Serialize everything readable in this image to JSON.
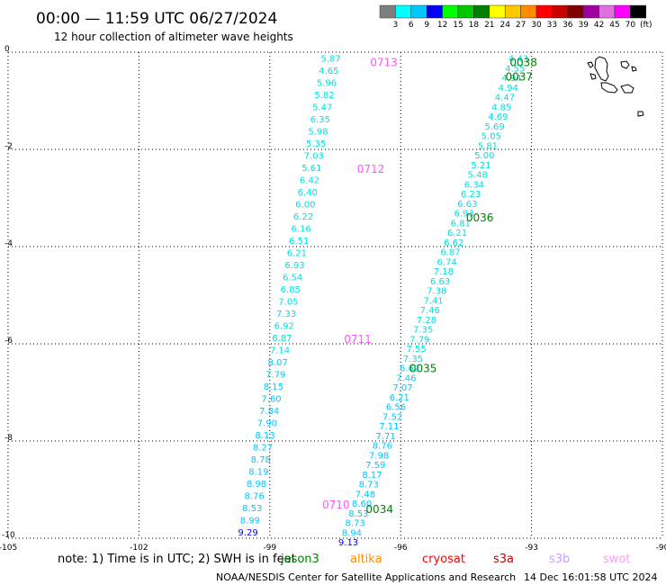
{
  "title": "00:00 — 11:59 UTC 06/27/2024",
  "subtitle": "12 hour collection of altimeter wave heights",
  "legend": {
    "unit": "(ft)",
    "labels": [
      "3",
      "6",
      "9",
      "12",
      "15",
      "18",
      "21",
      "24",
      "27",
      "30",
      "33",
      "36",
      "39",
      "42",
      "45",
      "70"
    ],
    "colors": [
      "#7f7f7f",
      "#00ffff",
      "#00c8ff",
      "#0000ff",
      "#00ff00",
      "#00c800",
      "#008000",
      "#ffff00",
      "#ffc800",
      "#ff8c00",
      "#ff0000",
      "#c80000",
      "#800000",
      "#a000a0",
      "#e070e0",
      "#ff00ff",
      "#000000"
    ]
  },
  "axes": {
    "x_ticks": [
      {
        "value": -105,
        "label": "-105"
      },
      {
        "value": -102,
        "label": "-102"
      },
      {
        "value": -99,
        "label": "-99"
      },
      {
        "value": -96,
        "label": "-96"
      },
      {
        "value": -93,
        "label": "-93"
      },
      {
        "value": -90,
        "label": "-90"
      }
    ],
    "y_ticks": [
      {
        "value": 0,
        "label": "0"
      },
      {
        "value": -2,
        "label": "-2"
      },
      {
        "value": -4,
        "label": "-4"
      },
      {
        "value": -6,
        "label": "-6"
      },
      {
        "value": -8,
        "label": "-8"
      },
      {
        "value": -10,
        "label": "-10"
      }
    ]
  },
  "tracks": [
    {
      "values": [
        "5.87",
        "4.65",
        "5.96",
        "5.82",
        "5.47",
        "6.35",
        "5.98",
        "5.35",
        "7.03",
        "5.61",
        "6.42",
        "6.40",
        "6.00",
        "6.22",
        "6.16",
        "6.51",
        "6.21",
        "6.93",
        "6.54",
        "6.85",
        "7.05",
        "7.33",
        "6.92",
        "6.87",
        "7.14",
        "8.07",
        "7.79",
        "8.15",
        "7.60",
        "7.84",
        "7.90",
        "8.13",
        "8.27",
        "8.78",
        "8.19",
        "8.98",
        "8.76",
        "8.53",
        "8.99",
        "9.29"
      ],
      "colors": [
        "#00e0e0",
        "#00e0e0",
        "#00e0e0",
        "#00e0e0",
        "#00e0e0",
        "#00e0e0",
        "#00e0e0",
        "#00e0e0",
        "#00e0e0",
        "#00e0e0",
        "#00e0e0",
        "#00e0e0",
        "#00e0e0",
        "#00e0e0",
        "#00e0e0",
        "#00e0e0",
        "#00e0e0",
        "#00e0e0",
        "#00e0e0",
        "#00e0e0",
        "#00e0e0",
        "#00e0e0",
        "#00e0e0",
        "#00e0e0",
        "#00e0e0",
        "#00c8ff",
        "#00c8ff",
        "#00c8ff",
        "#00c8ff",
        "#00c8ff",
        "#00c8ff",
        "#00c8ff",
        "#00c8ff",
        "#00c8ff",
        "#00c8ff",
        "#00c8ff",
        "#00c8ff",
        "#00c8ff",
        "#00c8ff",
        "#0000ff"
      ],
      "start": {
        "lon": -97.6,
        "lat": -0.05
      },
      "end": {
        "lon": -99.5,
        "lat": -9.8
      }
    },
    {
      "values": [
        "4.43",
        "4.55",
        "4.94",
        "4.94",
        "4.47",
        "4.85",
        "4.69",
        "5.69",
        "5.05",
        "5.81",
        "5.00",
        "5.21",
        "5.48",
        "6.34",
        "6.23",
        "6.63",
        "6.93",
        "6.81",
        "6.21",
        "6.62",
        "6.87",
        "6.74",
        "7.18",
        "6.63",
        "7.38",
        "7.41",
        "7.46",
        "7.28",
        "7.35",
        "7.79",
        "7.55",
        "7.35",
        "6.62",
        "7.46",
        "7.07",
        "6.21",
        "6.56",
        "7.52",
        "7.11",
        "7.71",
        "8.76",
        "7.98",
        "7.59",
        "8.17",
        "8.73",
        "7.48",
        "8.60",
        "8.53",
        "8.73",
        "8.94",
        "9.13"
      ],
      "colors": [
        "#00e0e0",
        "#00e0e0",
        "#00e0e0",
        "#00e0e0",
        "#00e0e0",
        "#00e0e0",
        "#00e0e0",
        "#00e0e0",
        "#00e0e0",
        "#00e0e0",
        "#00e0e0",
        "#00e0e0",
        "#00e0e0",
        "#00e0e0",
        "#00e0e0",
        "#00e0e0",
        "#00e0e0",
        "#00e0e0",
        "#00e0e0",
        "#00e0e0",
        "#00e0e0",
        "#00e0e0",
        "#00e0e0",
        "#00e0e0",
        "#00e0e0",
        "#00e0e0",
        "#00e0e0",
        "#00e0e0",
        "#00e0e0",
        "#00e0e0",
        "#00e0e0",
        "#00e0e0",
        "#00c8ff",
        "#00c8ff",
        "#00c8ff",
        "#00c8ff",
        "#00c8ff",
        "#00c8ff",
        "#00c8ff",
        "#00c8ff",
        "#00c8ff",
        "#00c8ff",
        "#00c8ff",
        "#00c8ff",
        "#00c8ff",
        "#00c8ff",
        "#00c8ff",
        "#00c8ff",
        "#00c8ff",
        "#00c8ff",
        "#0000ff"
      ],
      "start": {
        "lon": -93.3,
        "lat": -0.05
      },
      "end": {
        "lon": -97.2,
        "lat": -10.0
      }
    }
  ],
  "time_labels": [
    {
      "text": "0713",
      "lon": -96.7,
      "lat": -0.1,
      "color": "#ff55ff"
    },
    {
      "text": "0712",
      "lon": -97.0,
      "lat": -2.3,
      "color": "#ff55ff"
    },
    {
      "text": "0711",
      "lon": -97.3,
      "lat": -5.8,
      "color": "#ff55ff"
    },
    {
      "text": "0710",
      "lon": -97.8,
      "lat": -9.2,
      "color": "#ff55ff"
    },
    {
      "text": "0038",
      "lon": -93.5,
      "lat": -0.1,
      "color": "#008000"
    },
    {
      "text": "0037",
      "lon": -93.6,
      "lat": -0.4,
      "color": "#008000"
    },
    {
      "text": "0036",
      "lon": -94.5,
      "lat": -3.3,
      "color": "#008000"
    },
    {
      "text": "0035",
      "lon": -95.8,
      "lat": -6.4,
      "color": "#008000"
    },
    {
      "text": "0034",
      "lon": -96.8,
      "lat": -9.3,
      "color": "#008000"
    }
  ],
  "notes": {
    "note_text": "note: 1) Time is in UTC; 2) SWH is in feet",
    "satellites": [
      {
        "name": "jason3",
        "color": "#008000"
      },
      {
        "name": "altika",
        "color": "#ff8c00"
      },
      {
        "name": "cryosat",
        "color": "#ff0000"
      },
      {
        "name": "s3a",
        "color": "#c80000"
      },
      {
        "name": "s3b",
        "color": "#c8a0ff"
      },
      {
        "name": "swot",
        "color": "#ff9bff"
      }
    ],
    "credit": "NOAA/NESDIS Center for Satellite Applications and Research",
    "timestamp": "14 Dec 16:01:58 UTC 2024"
  }
}
